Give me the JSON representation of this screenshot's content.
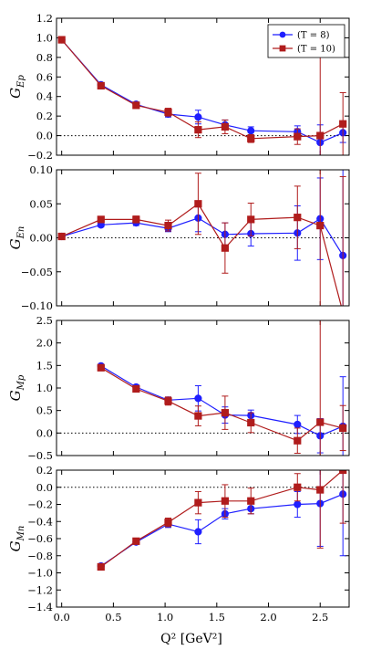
{
  "colors": {
    "blue": "#1f1fff",
    "red": "#b01c1c",
    "axis": "#000000"
  },
  "legend": [
    {
      "label": "(T = 8)",
      "color": "blue",
      "marker": "circle"
    },
    {
      "label": "(T = 10)",
      "color": "red",
      "marker": "square"
    }
  ],
  "xaxis": {
    "label": "Q² [GeV²]",
    "range": [
      -0.05,
      2.78
    ],
    "ticks": [
      0.0,
      0.5,
      1.0,
      1.5,
      2.0,
      2.5
    ],
    "tick_labels": [
      "0.0",
      "0.5",
      "1.0",
      "1.5",
      "2.0",
      "2.5"
    ]
  },
  "chart_data": [
    {
      "type": "line",
      "ylabel": "G_Ep",
      "ylim": [
        -0.2,
        1.2
      ],
      "yticks": [
        -0.2,
        0.0,
        0.2,
        0.4,
        0.6,
        0.8,
        1.0,
        1.2
      ],
      "ytick_labels": [
        "−0.2",
        "0.0",
        "0.2",
        "0.4",
        "0.6",
        "0.8",
        "1.0",
        "1.2"
      ],
      "zero_line": true,
      "legend": "top-right",
      "series": [
        {
          "name": "(T = 8)",
          "color": "blue",
          "marker": "circle",
          "x": [
            0.0,
            0.38,
            0.72,
            1.03,
            1.32,
            1.58,
            1.83,
            2.28,
            2.5,
            2.72
          ],
          "y": [
            0.98,
            0.52,
            0.32,
            0.22,
            0.19,
            0.11,
            0.05,
            0.04,
            -0.07,
            0.03
          ],
          "err": [
            0.01,
            0.01,
            0.02,
            0.03,
            0.07,
            0.05,
            0.04,
            0.06,
            0.18,
            0.1
          ]
        },
        {
          "name": "(T = 10)",
          "color": "red",
          "marker": "square",
          "x": [
            0.0,
            0.38,
            0.72,
            1.03,
            1.32,
            1.58,
            1.83,
            2.28,
            2.5,
            2.72
          ],
          "y": [
            0.98,
            0.51,
            0.31,
            0.24,
            0.06,
            0.09,
            -0.03,
            -0.01,
            0.0,
            0.12
          ],
          "err": [
            0.01,
            0.02,
            0.03,
            0.04,
            0.08,
            0.07,
            0.04,
            0.08,
            0.9,
            0.32
          ]
        }
      ]
    },
    {
      "type": "line",
      "ylabel": "G_En",
      "ylim": [
        -0.1,
        0.1
      ],
      "yticks": [
        -0.1,
        -0.05,
        0.0,
        0.05,
        0.1
      ],
      "ytick_labels": [
        "−0.10",
        "−0.05",
        "0.00",
        "0.05",
        "0.10"
      ],
      "zero_line": true,
      "series": [
        {
          "name": "(T = 8)",
          "color": "blue",
          "marker": "circle",
          "x": [
            0.0,
            0.38,
            0.72,
            1.03,
            1.32,
            1.58,
            1.83,
            2.28,
            2.5,
            2.72
          ],
          "y": [
            0.002,
            0.019,
            0.022,
            0.014,
            0.029,
            0.005,
            0.006,
            0.007,
            0.028,
            -0.026
          ],
          "err": [
            0.001,
            0.003,
            0.004,
            0.005,
            0.02,
            0.017,
            0.018,
            0.04,
            0.06,
            0.13
          ]
        },
        {
          "name": "(T = 10)",
          "color": "red",
          "marker": "square",
          "x": [
            0.0,
            0.38,
            0.72,
            1.03,
            1.32,
            1.58,
            1.83,
            2.28,
            2.5,
            2.72
          ],
          "y": [
            0.002,
            0.027,
            0.027,
            0.018,
            0.05,
            -0.015,
            0.027,
            0.03,
            0.018,
            -0.11
          ],
          "err": [
            0.001,
            0.004,
            0.005,
            0.008,
            0.045,
            0.037,
            0.024,
            0.046,
            0.16,
            0.2
          ]
        }
      ]
    },
    {
      "type": "line",
      "ylabel": "G_Mp",
      "ylim": [
        -0.5,
        2.5
      ],
      "yticks": [
        -0.5,
        0.0,
        0.5,
        1.0,
        1.5,
        2.0,
        2.5
      ],
      "ytick_labels": [
        "−0.5",
        "0.0",
        "0.5",
        "1.0",
        "1.5",
        "2.0",
        "2.5"
      ],
      "zero_line": true,
      "series": [
        {
          "name": "(T = 8)",
          "color": "blue",
          "marker": "circle",
          "x": [
            0.38,
            0.72,
            1.03,
            1.32,
            1.58,
            1.83,
            2.28,
            2.5,
            2.72
          ],
          "y": [
            1.49,
            1.02,
            0.73,
            0.77,
            0.4,
            0.39,
            0.19,
            -0.06,
            0.15
          ],
          "err": [
            0.03,
            0.05,
            0.07,
            0.28,
            0.18,
            0.12,
            0.2,
            0.38,
            1.1
          ]
        },
        {
          "name": "(T = 10)",
          "color": "red",
          "marker": "square",
          "x": [
            0.38,
            0.72,
            1.03,
            1.32,
            1.58,
            1.83,
            2.28,
            2.5,
            2.72
          ],
          "y": [
            1.45,
            0.98,
            0.71,
            0.38,
            0.45,
            0.23,
            -0.17,
            0.24,
            0.11
          ],
          "err": [
            0.05,
            0.06,
            0.09,
            0.22,
            0.37,
            0.22,
            0.28,
            2.6,
            0.5
          ]
        }
      ]
    },
    {
      "type": "line",
      "ylabel": "G_Mn",
      "ylim": [
        -1.4,
        0.2
      ],
      "yticks": [
        -1.4,
        -1.2,
        -1.0,
        -0.8,
        -0.6,
        -0.4,
        -0.2,
        0.0,
        0.2
      ],
      "ytick_labels": [
        "−1.4",
        "−1.2",
        "−1.0",
        "−0.8",
        "−0.6",
        "−0.4",
        "−0.2",
        "0.0",
        "0.2"
      ],
      "zero_line": true,
      "series": [
        {
          "name": "(T = 8)",
          "color": "blue",
          "marker": "circle",
          "x": [
            0.38,
            0.72,
            1.03,
            1.32,
            1.58,
            1.83,
            2.28,
            2.5,
            2.72
          ],
          "y": [
            -0.92,
            -0.64,
            -0.43,
            -0.52,
            -0.31,
            -0.25,
            -0.2,
            -0.19,
            -0.08
          ],
          "err": [
            0.02,
            0.02,
            0.04,
            0.14,
            0.06,
            0.06,
            0.15,
            0.5,
            0.72
          ]
        },
        {
          "name": "(T = 10)",
          "color": "red",
          "marker": "square",
          "x": [
            0.38,
            0.72,
            1.03,
            1.32,
            1.58,
            1.83,
            2.28,
            2.5,
            2.72
          ],
          "y": [
            -0.93,
            -0.63,
            -0.41,
            -0.18,
            -0.16,
            -0.16,
            0.0,
            -0.03,
            0.2
          ],
          "err": [
            0.02,
            0.02,
            0.05,
            0.13,
            0.19,
            0.15,
            0.16,
            0.68,
            0.62
          ]
        }
      ]
    }
  ]
}
